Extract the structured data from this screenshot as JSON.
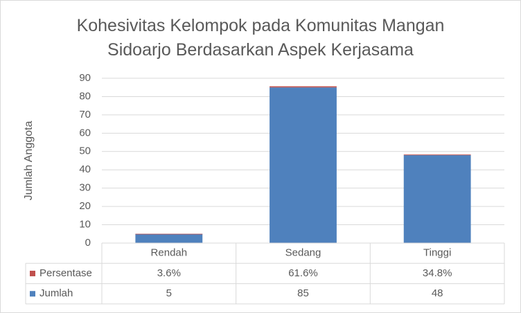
{
  "chart_data": {
    "type": "stacked_bar",
    "title": "Kohesivitas Kelompok pada Komunitas Mangan Sidoarjo Berdasarkan Aspek Kerjasama",
    "y_label": "Jumlah Anggota",
    "categories": [
      "Rendah",
      "Sedang",
      "Tinggi"
    ],
    "series": [
      {
        "name": "Jumlah",
        "color": "#4f81bd",
        "values": [
          5,
          85,
          48
        ]
      },
      {
        "name": "Persentase",
        "color": "#c0504d",
        "values": [
          0.036,
          0.616,
          0.348
        ],
        "value_labels": [
          "3.6%",
          "61.6%",
          "34.8%"
        ]
      }
    ],
    "ylim": [
      0,
      90
    ],
    "yticks": [
      0,
      10,
      20,
      30,
      40,
      50,
      60,
      70,
      80,
      90
    ],
    "grid": true,
    "data_table": true
  }
}
